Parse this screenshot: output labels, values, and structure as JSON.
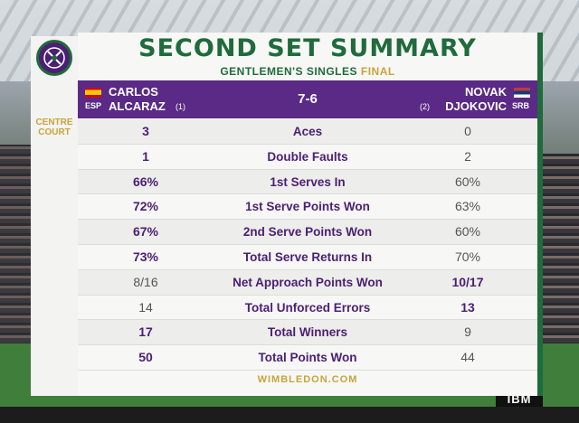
{
  "venue": [
    "CENTRE",
    "COURT"
  ],
  "title": "SECOND SET SUMMARY",
  "subtitle_main": "GENTLEMEN'S SINGLES",
  "subtitle_round": "FINAL",
  "player1": {
    "first": "CARLOS",
    "last": "ALCARAZ",
    "seed": "(1)",
    "country": "ESP",
    "flag_colors": [
      "#c60b1e",
      "#ffc400"
    ]
  },
  "player2": {
    "first": "NOVAK",
    "last": "DJOKOVIC",
    "seed": "(2)",
    "country": "SRB",
    "flag_colors": [
      "#c6363c",
      "#0c4076",
      "#ffffff"
    ]
  },
  "set_score": "7-6",
  "stats": [
    {
      "label": "Aces",
      "p1": "3",
      "p2": "0",
      "leader": "p1"
    },
    {
      "label": "Double Faults",
      "p1": "1",
      "p2": "2",
      "leader": "p1"
    },
    {
      "label": "1st Serves In",
      "p1": "66%",
      "p2": "60%",
      "leader": "p1"
    },
    {
      "label": "1st Serve Points Won",
      "p1": "72%",
      "p2": "63%",
      "leader": "p1"
    },
    {
      "label": "2nd Serve Points Won",
      "p1": "67%",
      "p2": "60%",
      "leader": "p1"
    },
    {
      "label": "Total Serve Returns In",
      "p1": "73%",
      "p2": "70%",
      "leader": "p1"
    },
    {
      "label": "Net Approach Points Won",
      "p1": "8/16",
      "p2": "10/17",
      "leader": "p2"
    },
    {
      "label": "Total Unforced Errors",
      "p1": "14",
      "p2": "13",
      "leader": "p2"
    },
    {
      "label": "Total Winners",
      "p1": "17",
      "p2": "9",
      "leader": "p1"
    },
    {
      "label": "Total Points Won",
      "p1": "50",
      "p2": "44",
      "leader": "p1"
    }
  ],
  "footer": "WIMBLEDON.COM",
  "sponsor": "IBM",
  "colors": {
    "purple": "#5a2a86",
    "green": "#1f6b3b",
    "gold": "#c8a43b"
  }
}
